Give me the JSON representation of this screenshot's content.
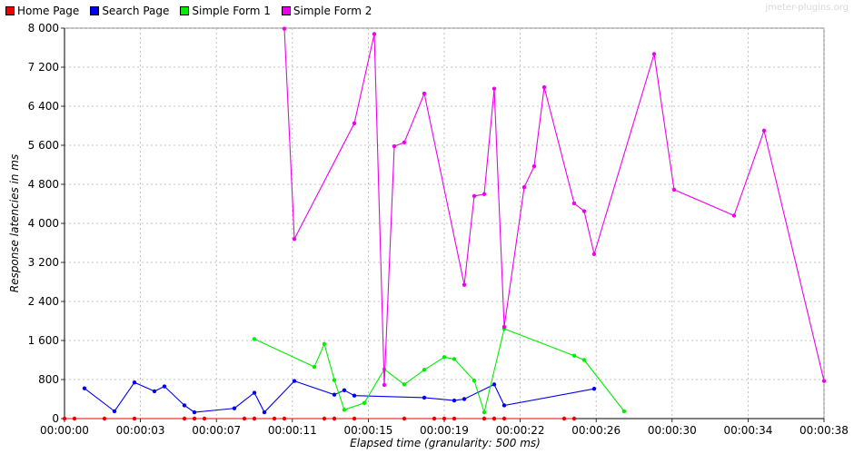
{
  "watermark": "jmeter-plugins.org",
  "chart_data": {
    "type": "line",
    "title": "",
    "xlabel": "Elapsed time (granularity: 500 ms)",
    "ylabel": "Response latencies in ms",
    "xlim": [
      0,
      38
    ],
    "ylim": [
      0,
      8000
    ],
    "x_ticks": [
      "00:00:00",
      "00:00:03",
      "00:00:07",
      "00:00:11",
      "00:00:15",
      "00:00:19",
      "00:00:22",
      "00:00:26",
      "00:00:30",
      "00:00:34",
      "00:00:38"
    ],
    "y_ticks": [
      "0",
      "800",
      "1 600",
      "2 400",
      "3 200",
      "4 000",
      "4 800",
      "5 600",
      "6 400",
      "7 200",
      "8 000"
    ],
    "grid": true,
    "legend_position": "top-left",
    "series": [
      {
        "name": "Home Page",
        "color": "#ee0000",
        "x": [
          0.0,
          0.5,
          2.0,
          3.5,
          6.0,
          6.5,
          7.0,
          9.0,
          9.5,
          10.5,
          11.0,
          13.0,
          13.5,
          14.5,
          17.0,
          18.5,
          19.0,
          19.5,
          21.0,
          21.5,
          22.0,
          25.0,
          25.5
        ],
        "y": [
          0,
          0,
          0,
          0,
          0,
          0,
          0,
          0,
          0,
          0,
          0,
          0,
          0,
          0,
          0,
          0,
          0,
          0,
          0,
          0,
          0,
          0,
          0
        ]
      },
      {
        "name": "Search Page",
        "color": "#0000ee",
        "x": [
          1.0,
          2.5,
          3.5,
          4.5,
          5.0,
          6.0,
          6.5,
          8.5,
          9.5,
          10.0,
          11.5,
          13.5,
          14.0,
          14.5,
          18.0,
          19.5,
          20.0,
          21.5,
          22.0,
          26.5
        ],
        "y": [
          620,
          150,
          740,
          560,
          660,
          270,
          130,
          210,
          530,
          130,
          770,
          490,
          580,
          470,
          430,
          370,
          400,
          700,
          270,
          610
        ]
      },
      {
        "name": "Simple Form 1",
        "color": "#00ee00",
        "x": [
          9.5,
          12.5,
          13.0,
          13.5,
          14.0,
          15.0,
          16.0,
          17.0,
          18.0,
          19.0,
          19.5,
          20.5,
          21.0,
          22.0,
          25.5,
          26.0,
          28.0
        ],
        "y": [
          1630,
          1060,
          1530,
          790,
          180,
          320,
          1010,
          700,
          1000,
          1260,
          1220,
          780,
          130,
          1840,
          1290,
          1200,
          150
        ]
      },
      {
        "name": "Simple Form 2",
        "color": "#ee00ee",
        "x": [
          11.0,
          11.5,
          14.5,
          15.5,
          16.0,
          16.5,
          17.0,
          18.0,
          20.0,
          20.5,
          21.0,
          21.5,
          22.0,
          23.0,
          23.5,
          24.0,
          25.5,
          26.0,
          26.5,
          29.5,
          30.5,
          33.5,
          35.0,
          38.0
        ],
        "y": [
          7990,
          3680,
          6050,
          7880,
          690,
          5580,
          5660,
          6660,
          2740,
          4560,
          4600,
          6760,
          1880,
          4740,
          5170,
          6790,
          4410,
          4250,
          3370,
          7470,
          4690,
          4160,
          5900,
          770
        ]
      }
    ]
  }
}
